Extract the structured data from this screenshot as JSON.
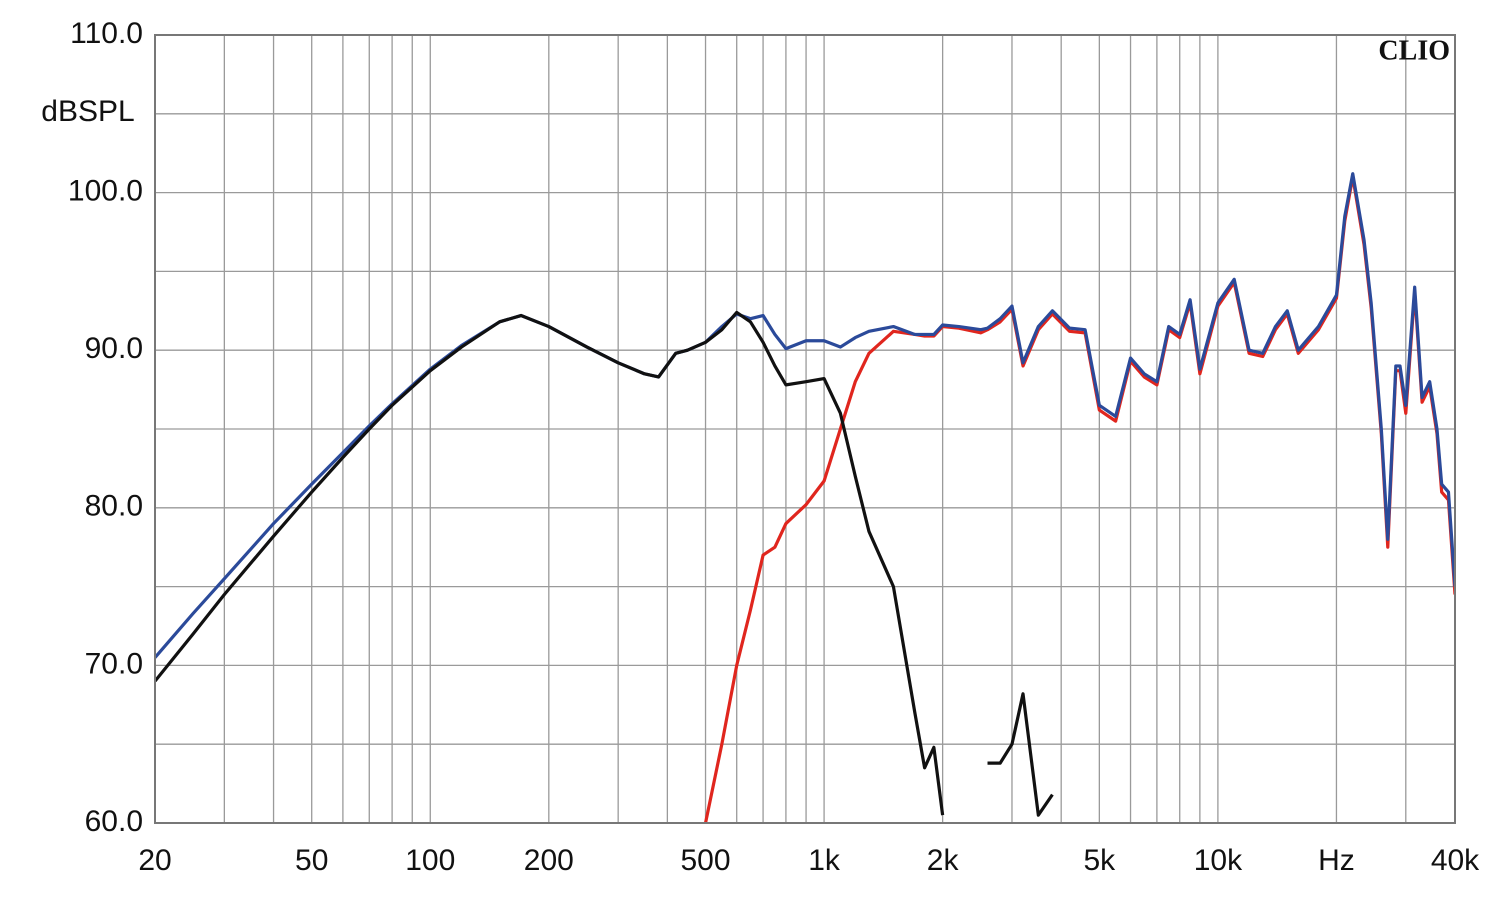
{
  "chart_data": {
    "type": "line",
    "y_label": "dBSPL",
    "annotation": "CLIO",
    "log_x": true,
    "grid": true,
    "xlim": [
      20,
      40000
    ],
    "ylim": [
      60,
      110
    ],
    "xticks": [
      20,
      50,
      100,
      200,
      500,
      {
        "value": 1000,
        "label": "1k"
      },
      {
        "value": 2000,
        "label": "2k"
      },
      {
        "value": 5000,
        "label": "5k"
      },
      {
        "value": 10000,
        "label": "10k"
      },
      {
        "value": 20000,
        "label": "Hz"
      },
      {
        "value": 40000,
        "label": "40k"
      }
    ],
    "yticks": [
      {
        "value": 60,
        "label": "60.0"
      },
      {
        "value": 70,
        "label": "70.0"
      },
      {
        "value": 80,
        "label": "80.0"
      },
      {
        "value": 90,
        "label": "90.0"
      },
      {
        "value": 100,
        "label": "100.0"
      },
      {
        "value": 110,
        "label": "110.0"
      }
    ],
    "x": [
      20,
      25,
      30,
      40,
      50,
      60,
      70,
      80,
      100,
      120,
      150,
      170,
      200,
      250,
      300,
      350,
      380,
      420,
      450,
      500,
      550,
      600,
      650,
      700,
      750,
      800,
      900,
      1000,
      1100,
      1200,
      1300,
      1500,
      1700,
      1800,
      1900,
      2000,
      2200,
      2500,
      2600,
      2800,
      3000,
      3200,
      3500,
      3800,
      4200,
      4600,
      5000,
      5500,
      6000,
      6500,
      7000,
      7500,
      8000,
      8500,
      9000,
      10000,
      11000,
      12000,
      13000,
      14000,
      15000,
      16000,
      18000,
      20000,
      21000,
      22000,
      23500,
      24500,
      26000,
      27000,
      28300,
      29000,
      30000,
      31600,
      33000,
      34500,
      36000,
      37000,
      38500,
      40000
    ],
    "series": [
      {
        "color": "#e0261e",
        "values": [
          null,
          null,
          null,
          null,
          null,
          null,
          null,
          null,
          null,
          null,
          null,
          null,
          null,
          null,
          null,
          null,
          null,
          null,
          null,
          60,
          65,
          70,
          73.5,
          77,
          77.5,
          79,
          80.2,
          81.7,
          85,
          88,
          89.8,
          91.2,
          91,
          90.9,
          90.9,
          91.5,
          91.4,
          91.1,
          91.3,
          91.8,
          92.6,
          89,
          91.3,
          92.3,
          91.2,
          91.1,
          86.2,
          85.5,
          89.3,
          88.3,
          87.8,
          91.3,
          90.8,
          93,
          88.5,
          92.8,
          94.3,
          89.8,
          89.6,
          91.3,
          92.3,
          89.8,
          91.3,
          93.3,
          98.2,
          101,
          96.7,
          92.7,
          84.7,
          77.5,
          88.7,
          88.7,
          86,
          93.7,
          86.7,
          87.7,
          84.7,
          81,
          80.5,
          74.5
        ]
      },
      {
        "color": "#2b4a9a",
        "values": [
          70.5,
          73.3,
          75.5,
          79,
          81.5,
          83.5,
          85.2,
          86.6,
          88.8,
          90.3,
          91.8,
          92.2,
          91.5,
          90.2,
          89.2,
          88.5,
          88.3,
          89.8,
          90,
          90.5,
          91.5,
          92.3,
          92,
          92.2,
          91,
          90.1,
          90.6,
          90.6,
          90.2,
          90.8,
          91.2,
          91.5,
          91,
          91,
          91,
          91.6,
          91.5,
          91.3,
          91.4,
          92,
          92.8,
          89.2,
          91.5,
          92.5,
          91.4,
          91.3,
          86.5,
          85.8,
          89.5,
          88.5,
          88,
          91.5,
          91,
          93.2,
          88.8,
          93,
          94.5,
          90,
          89.8,
          91.5,
          92.5,
          90,
          91.5,
          93.5,
          98.5,
          101.2,
          97,
          93,
          85,
          78,
          89,
          89,
          86.5,
          94,
          87,
          88,
          85,
          81.5,
          81,
          75
        ]
      },
      {
        "color": "#111111",
        "values": [
          69,
          72,
          74.5,
          78.2,
          81,
          83.2,
          85,
          86.5,
          88.7,
          90.2,
          91.8,
          92.2,
          91.5,
          90.2,
          89.2,
          88.5,
          88.3,
          89.8,
          90,
          90.5,
          91.3,
          92.4,
          91.8,
          90.5,
          89,
          87.8,
          88,
          88.2,
          86,
          82,
          78.5,
          75,
          67,
          63.5,
          64.8,
          60.5,
          null,
          null,
          63.8,
          63.8,
          65,
          68.2,
          60.5,
          61.8,
          null,
          null,
          null,
          null,
          null,
          null,
          null,
          null,
          null,
          null,
          null,
          null,
          null,
          null,
          null,
          null,
          null,
          null,
          null,
          null,
          null,
          null,
          null,
          null,
          null,
          null,
          null,
          null,
          null,
          null,
          null,
          null,
          null,
          null,
          null,
          null
        ]
      }
    ]
  }
}
